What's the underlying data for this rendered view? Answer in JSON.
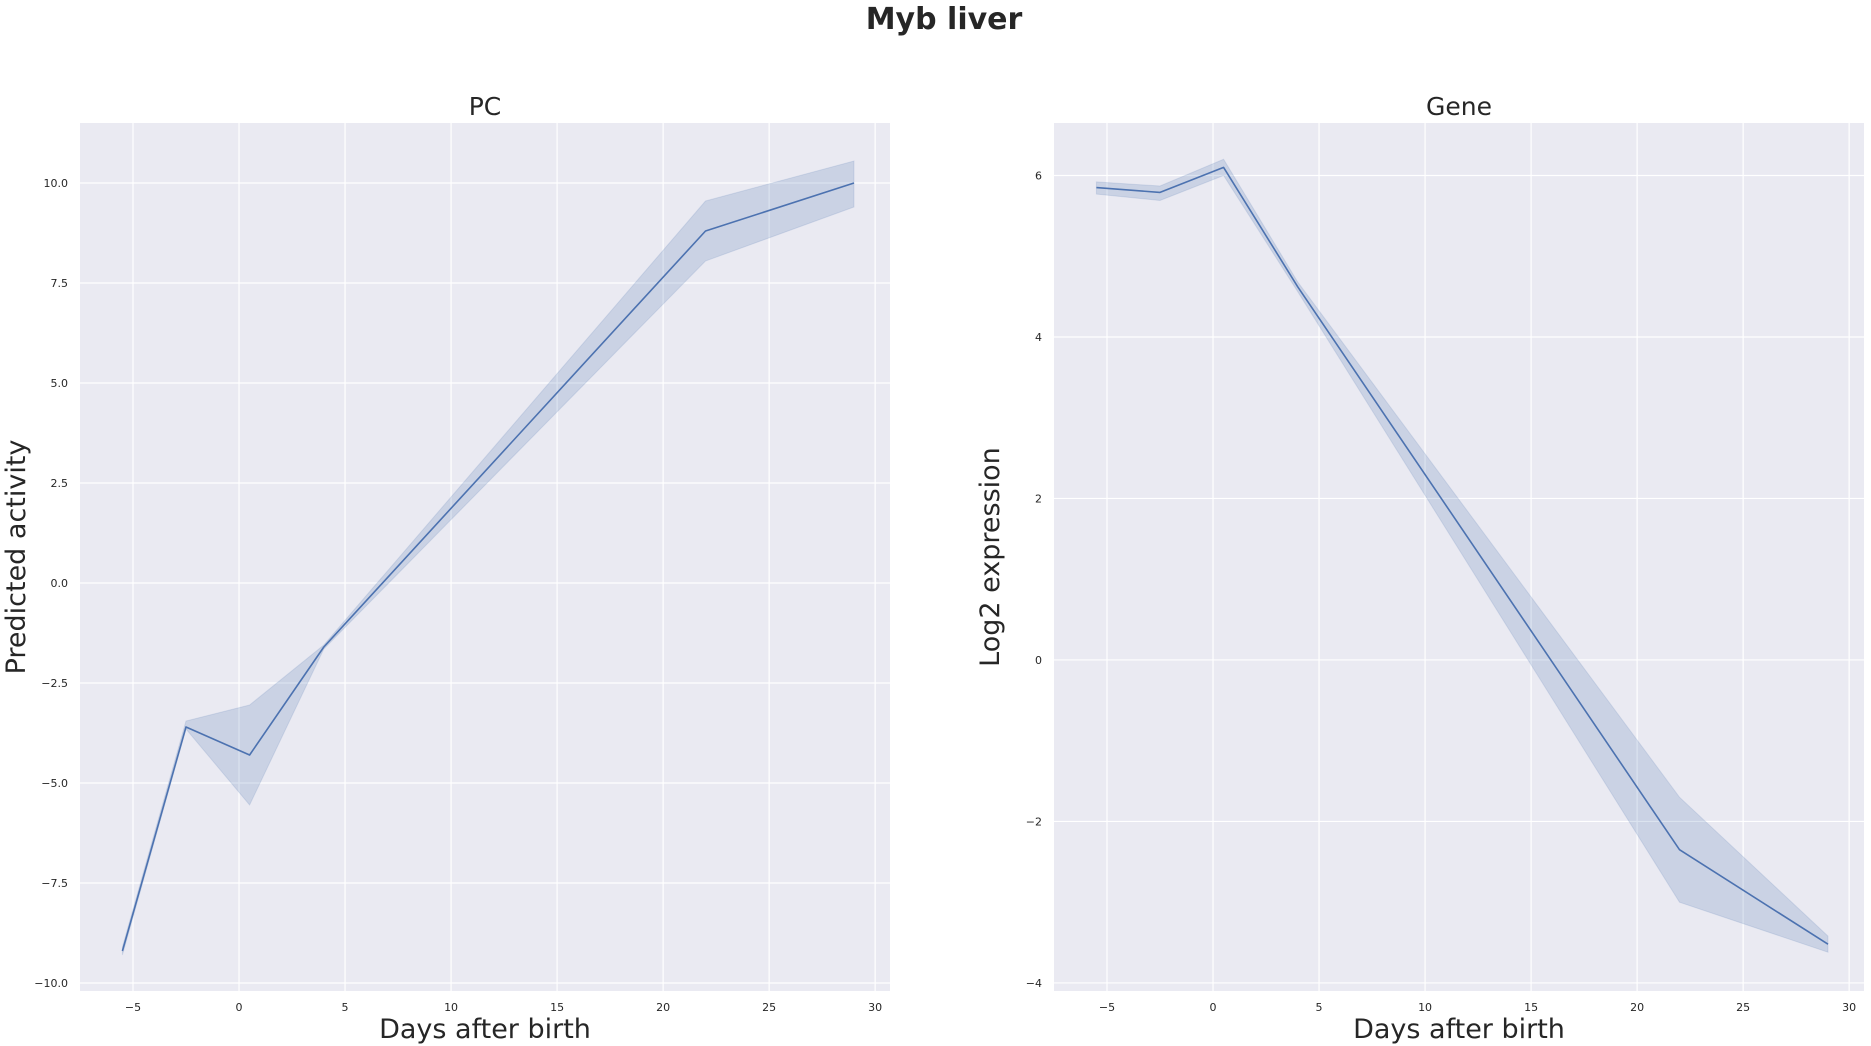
{
  "figure": {
    "title": "Myb liver"
  },
  "colors": {
    "background": "#eaeaf2",
    "line": "#4c72b0",
    "grid": "#ffffff"
  },
  "chart_data": [
    {
      "type": "line",
      "title": "PC",
      "xlabel": "Days after birth",
      "ylabel": "Predicted activity",
      "xlim": [
        -7.5,
        30.7
      ],
      "ylim": [
        -10.2,
        11.5
      ],
      "xticks": [
        -5,
        0,
        5,
        10,
        15,
        20,
        25,
        30
      ],
      "xtick_labels": [
        "−5",
        "0",
        "5",
        "10",
        "15",
        "20",
        "25",
        "30"
      ],
      "yticks": [
        -10,
        -7.5,
        -5,
        -2.5,
        0,
        2.5,
        5,
        7.5,
        10
      ],
      "ytick_labels": [
        "−10.0",
        "−7.5",
        "−5.0",
        "−2.5",
        "0.0",
        "2.5",
        "5.0",
        "7.5",
        "10.0"
      ],
      "grid": true,
      "series": [
        {
          "x": [
            -5.5,
            -2.5,
            0.5,
            4,
            22,
            29
          ],
          "y": [
            -9.2,
            -3.6,
            -4.3,
            -1.6,
            8.8,
            10.0
          ],
          "ci_lower": [
            -9.3,
            -3.65,
            -5.55,
            -1.65,
            8.05,
            9.4
          ],
          "ci_upper": [
            -9.1,
            -3.45,
            -3.05,
            -1.55,
            9.55,
            10.55
          ]
        }
      ]
    },
    {
      "type": "line",
      "title": "Gene",
      "xlabel": "Days after birth",
      "ylabel": "Log2 expression",
      "xlim": [
        -7.5,
        30.7
      ],
      "ylim": [
        -4.1,
        6.65
      ],
      "xticks": [
        -5,
        0,
        5,
        10,
        15,
        20,
        25,
        30
      ],
      "xtick_labels": [
        "−5",
        "0",
        "5",
        "10",
        "15",
        "20",
        "25",
        "30"
      ],
      "yticks": [
        -4,
        -2,
        0,
        2,
        4,
        6
      ],
      "ytick_labels": [
        "−4",
        "−2",
        "0",
        "2",
        "4",
        "6"
      ],
      "grid": true,
      "series": [
        {
          "x": [
            -5.5,
            -2.5,
            0.5,
            4,
            22,
            29
          ],
          "y": [
            5.85,
            5.79,
            6.1,
            4.62,
            -2.35,
            -3.52
          ],
          "ci_lower": [
            5.77,
            5.69,
            6.0,
            4.56,
            -3.0,
            -3.62
          ],
          "ci_upper": [
            5.92,
            5.87,
            6.2,
            4.68,
            -1.7,
            -3.42
          ]
        }
      ]
    }
  ]
}
